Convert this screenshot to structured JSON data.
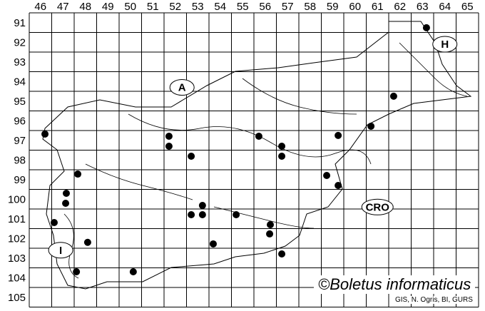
{
  "columns": [
    "46",
    "47",
    "48",
    "49",
    "50",
    "51",
    "52",
    "53",
    "54",
    "55",
    "56",
    "57",
    "58",
    "59",
    "60",
    "61",
    "62",
    "63",
    "64",
    "65"
  ],
  "rows": [
    "91",
    "92",
    "93",
    "94",
    "95",
    "96",
    "97",
    "98",
    "99",
    "100",
    "101",
    "102",
    "103",
    "104",
    "105"
  ],
  "country_labels": [
    {
      "text": "A",
      "col": 52.8,
      "row": 94.8
    },
    {
      "text": "H",
      "col": 64.5,
      "row": 92.6
    },
    {
      "text": "CRO",
      "col": 61.5,
      "row": 100.9
    },
    {
      "text": "I",
      "col": 47.4,
      "row": 103.1
    }
  ],
  "records": [
    [
      63.68,
      91.76
    ],
    [
      62.22,
      95.25
    ],
    [
      61.21,
      96.78
    ],
    [
      59.75,
      97.25
    ],
    [
      46.7,
      97.18
    ],
    [
      52.22,
      97.29
    ],
    [
      52.22,
      97.8
    ],
    [
      56.22,
      97.29
    ],
    [
      57.24,
      97.8
    ],
    [
      57.24,
      98.31
    ],
    [
      53.21,
      98.31
    ],
    [
      48.16,
      99.22
    ],
    [
      59.24,
      99.29
    ],
    [
      59.75,
      99.8
    ],
    [
      47.65,
      100.2
    ],
    [
      47.62,
      100.71
    ],
    [
      53.71,
      100.82
    ],
    [
      53.21,
      101.29
    ],
    [
      53.71,
      101.29
    ],
    [
      55.21,
      101.29
    ],
    [
      47.11,
      101.69
    ],
    [
      56.73,
      101.8
    ],
    [
      56.7,
      102.27
    ],
    [
      48.6,
      102.7
    ],
    [
      54.19,
      102.78
    ],
    [
      57.24,
      103.29
    ],
    [
      48.1,
      104.2
    ],
    [
      50.63,
      104.2
    ]
  ],
  "credit": "©Boletus informaticus",
  "source": "GIS, N. Ogris, BI, GURS",
  "colors": {
    "ink": "#000000",
    "background": "#ffffff"
  }
}
